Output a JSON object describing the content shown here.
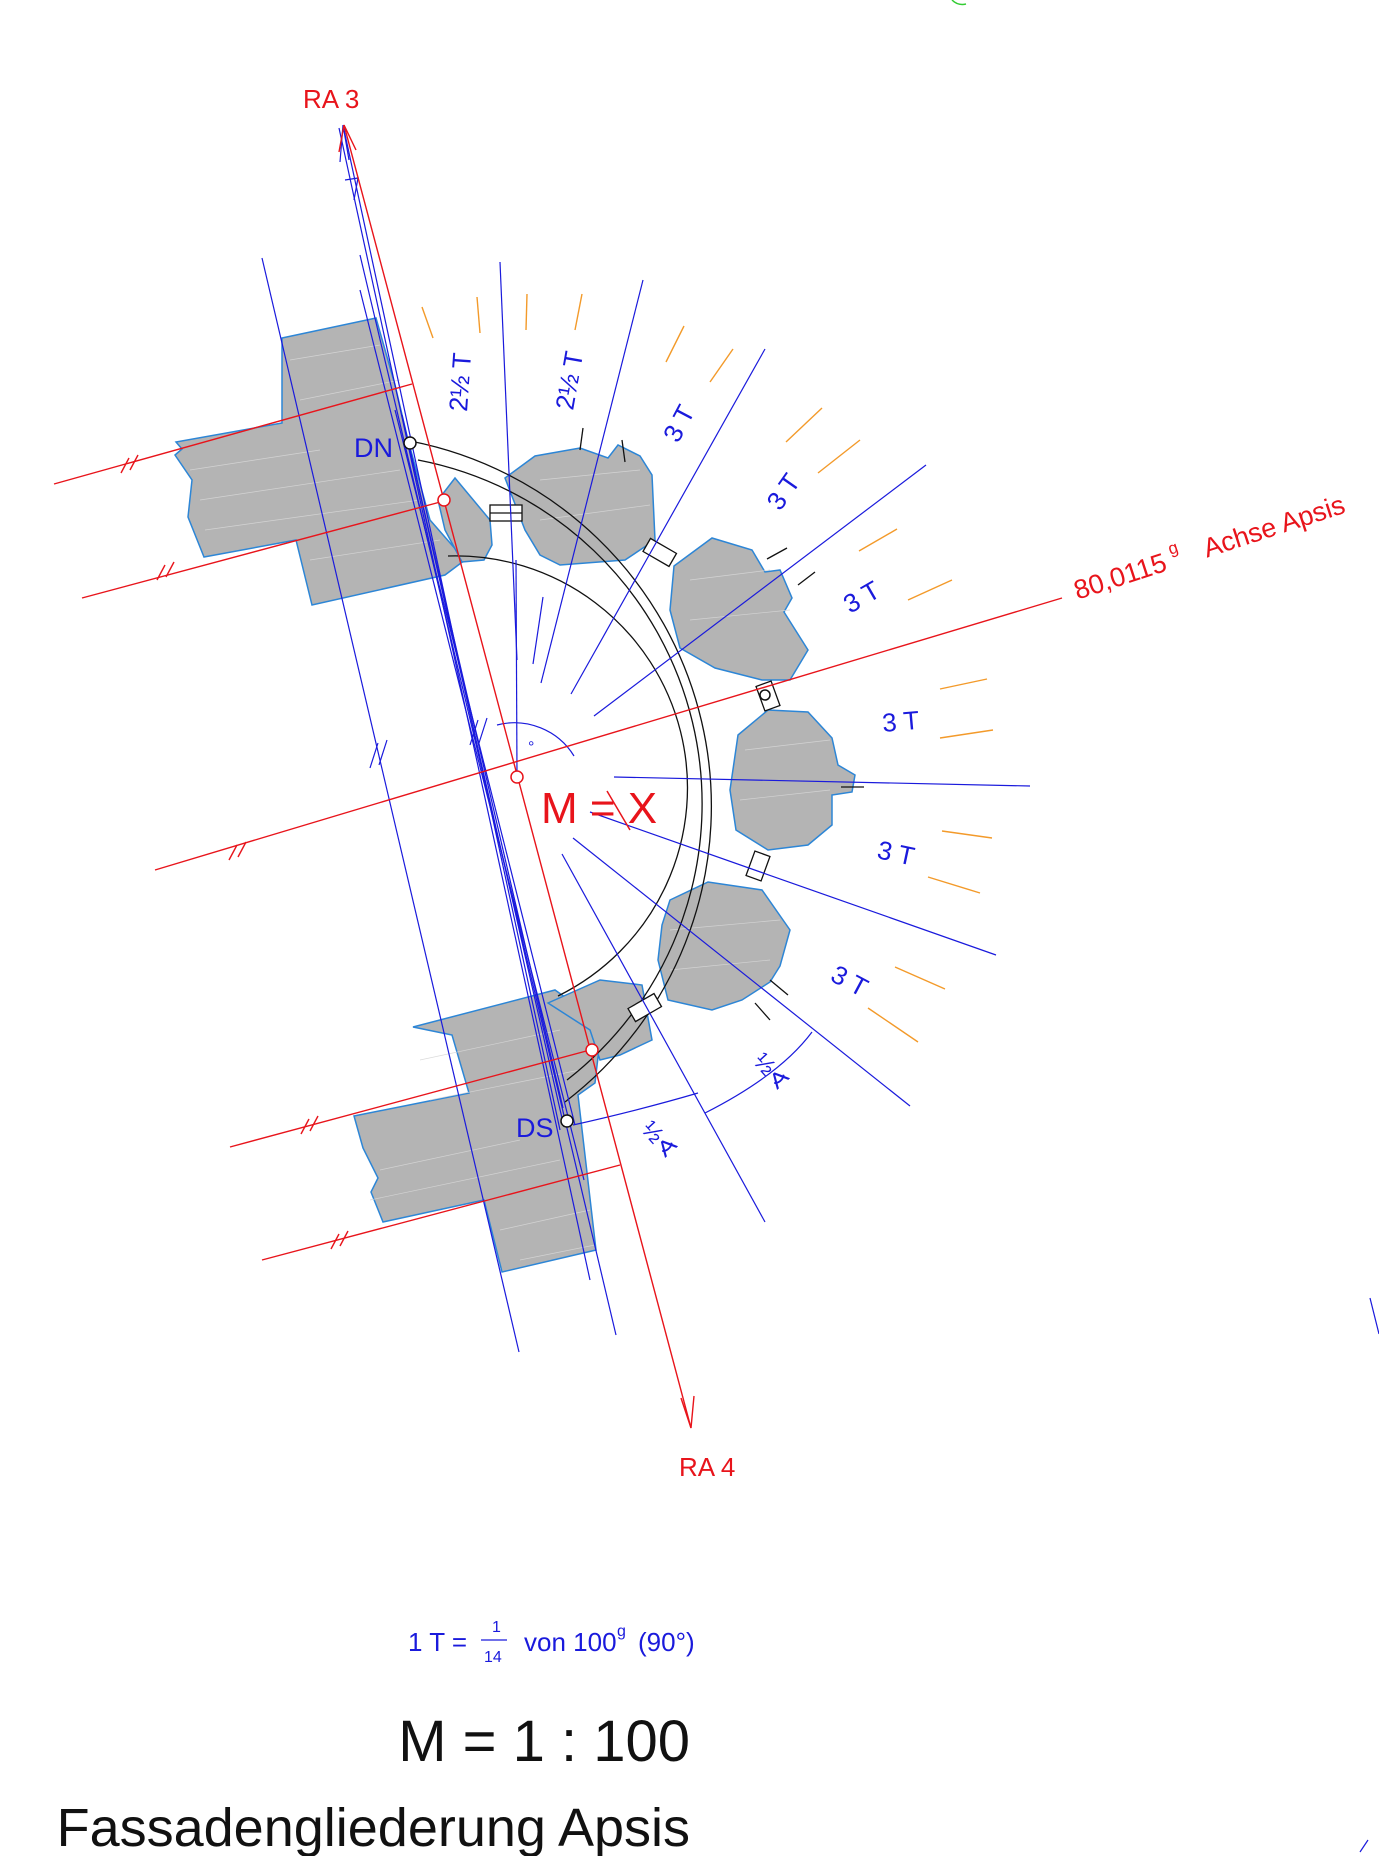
{
  "labels": {
    "ra3": "RA 3",
    "ra4": "RA 4",
    "dn": "DN",
    "ds": "DS",
    "center": "M = X",
    "axis_angle": "80,0115",
    "axis_angle_unit": "g",
    "axis_name": "Achse Apsis",
    "half_angle_1": "½∢",
    "half_angle_2": "½∢",
    "degree_mark": "°"
  },
  "segments": [
    {
      "text": "2½ T"
    },
    {
      "text": "2½ T"
    },
    {
      "text": "3 T"
    },
    {
      "text": "3 T"
    },
    {
      "text": "3 T"
    },
    {
      "text": "3 T"
    },
    {
      "text": "3 T"
    },
    {
      "text": "3 T"
    }
  ],
  "legend": {
    "prefix": "1 T =",
    "numerator": "1",
    "denominator": "14",
    "suffix": "von 100",
    "unit": "g",
    "paren": "(90°)"
  },
  "scale": "M = 1 : 100",
  "title": "Fassadengliederung Apsis",
  "colors": {
    "red": "#e8141b",
    "blue": "#1a1adc",
    "orange": "#f39a2a",
    "stone": "#b4b4b4",
    "stone_edge": "#2d86d6",
    "black": "#111111",
    "green": "#33cc33"
  }
}
